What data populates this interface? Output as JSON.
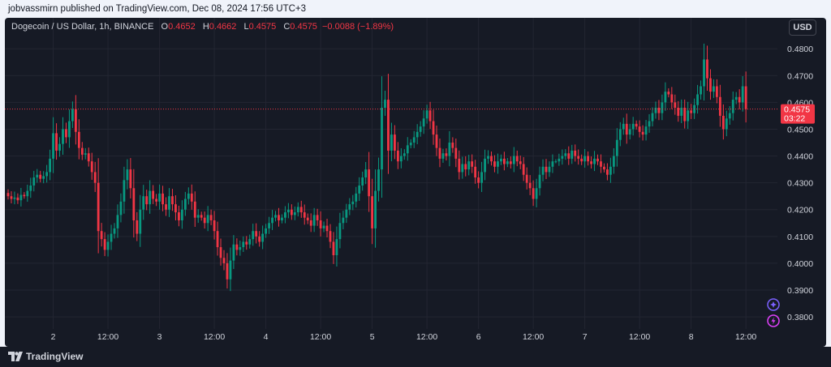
{
  "publish_line": "jobvassmirn published on TradingView.com, Dec 08, 2024 17:56 UTC+3",
  "legend": {
    "symbol": "Dogecoin / US Dollar, 1h, BINANCE",
    "open_label": "O",
    "open": "0.4652",
    "high_label": "H",
    "high": "0.4662",
    "low_label": "L",
    "low": "0.4575",
    "close_label": "C",
    "close": "0.4575",
    "change": "−0.0088 (−1.89%)"
  },
  "currency_button": "USD",
  "price_tag": {
    "price": "0.4575",
    "countdown": "03:22"
  },
  "footer": {
    "brand": "TradingView"
  },
  "colors": {
    "up": "#089981",
    "down": "#f23645",
    "background": "#161a25",
    "grid": "#232632",
    "text": "#d1d4dc"
  },
  "chart_data": {
    "type": "candlestick",
    "ylim": [
      0.3755,
      0.4855
    ],
    "y_ticks": [
      "0.4800",
      "0.4700",
      "0.4600",
      "0.4500",
      "0.4400",
      "0.4300",
      "0.4200",
      "0.4100",
      "0.4000",
      "0.3900",
      "0.3800"
    ],
    "x_ticks": [
      {
        "label": "2",
        "index": 14
      },
      {
        "label": "12:00",
        "index": 31
      },
      {
        "label": "3",
        "index": 47
      },
      {
        "label": "12:00",
        "index": 64
      },
      {
        "label": "4",
        "index": 80
      },
      {
        "label": "12:00",
        "index": 97
      },
      {
        "label": "5",
        "index": 113
      },
      {
        "label": "12:00",
        "index": 130
      },
      {
        "label": "6",
        "index": 146
      },
      {
        "label": "12:00",
        "index": 163
      },
      {
        "label": "7",
        "index": 179
      },
      {
        "label": "12:00",
        "index": 196
      },
      {
        "label": "8",
        "index": 212
      },
      {
        "label": "12:00",
        "index": 229
      }
    ],
    "last_price": 0.4575,
    "close": [
      0.425,
      0.424,
      0.4245,
      0.4235,
      0.4255,
      0.425,
      0.427,
      0.429,
      0.432,
      0.433,
      0.4315,
      0.4325,
      0.434,
      0.439,
      0.4485,
      0.442,
      0.4445,
      0.45,
      0.447,
      0.453,
      0.4575,
      0.449,
      0.443,
      0.4405,
      0.441,
      0.438,
      0.434,
      0.43,
      0.412,
      0.409,
      0.405,
      0.408,
      0.411,
      0.413,
      0.418,
      0.423,
      0.431,
      0.435,
      0.428,
      0.416,
      0.411,
      0.42,
      0.425,
      0.422,
      0.427,
      0.424,
      0.423,
      0.426,
      0.422,
      0.42,
      0.425,
      0.422,
      0.419,
      0.416,
      0.42,
      0.424,
      0.426,
      0.423,
      0.417,
      0.418,
      0.417,
      0.415,
      0.418,
      0.416,
      0.412,
      0.406,
      0.402,
      0.4,
      0.394,
      0.401,
      0.407,
      0.405,
      0.406,
      0.408,
      0.407,
      0.409,
      0.412,
      0.41,
      0.408,
      0.411,
      0.413,
      0.415,
      0.417,
      0.418,
      0.416,
      0.417,
      0.419,
      0.42,
      0.418,
      0.419,
      0.421,
      0.419,
      0.417,
      0.416,
      0.414,
      0.418,
      0.416,
      0.413,
      0.414,
      0.412,
      0.408,
      0.403,
      0.409,
      0.415,
      0.417,
      0.42,
      0.422,
      0.423,
      0.426,
      0.429,
      0.432,
      0.435,
      0.425,
      0.413,
      0.427,
      0.435,
      0.458,
      0.461,
      0.442,
      0.448,
      0.442,
      0.438,
      0.44,
      0.441,
      0.444,
      0.445,
      0.447,
      0.449,
      0.451,
      0.454,
      0.457,
      0.453,
      0.448,
      0.443,
      0.439,
      0.441,
      0.44,
      0.445,
      0.443,
      0.439,
      0.434,
      0.437,
      0.435,
      0.438,
      0.436,
      0.432,
      0.43,
      0.434,
      0.439,
      0.44,
      0.438,
      0.436,
      0.438,
      0.439,
      0.437,
      0.438,
      0.437,
      0.44,
      0.438,
      0.437,
      0.433,
      0.43,
      0.428,
      0.424,
      0.428,
      0.433,
      0.436,
      0.434,
      0.436,
      0.438,
      0.438,
      0.439,
      0.44,
      0.441,
      0.439,
      0.442,
      0.44,
      0.439,
      0.438,
      0.44,
      0.438,
      0.437,
      0.439,
      0.438,
      0.436,
      0.435,
      0.433,
      0.436,
      0.44,
      0.446,
      0.45,
      0.452,
      0.448,
      0.45,
      0.452,
      0.451,
      0.449,
      0.448,
      0.451,
      0.453,
      0.456,
      0.458,
      0.456,
      0.46,
      0.464,
      0.463,
      0.46,
      0.458,
      0.455,
      0.458,
      0.453,
      0.457,
      0.456,
      0.459,
      0.463,
      0.466,
      0.476,
      0.469,
      0.464,
      0.466,
      0.462,
      0.455,
      0.45,
      0.454,
      0.456,
      0.461,
      0.462,
      0.46,
      0.466,
      0.4575
    ]
  }
}
